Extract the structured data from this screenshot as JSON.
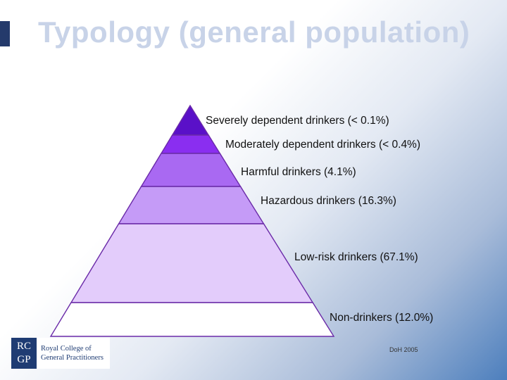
{
  "title": "Typology (general population)",
  "tiers": [
    {
      "label": "Severely dependent drinkers (< 0.1%)",
      "color": "#5a10c8"
    },
    {
      "label": "Moderately dependent drinkers (< 0.4%)",
      "color": "#8a2ef0"
    },
    {
      "label": "Harmful drinkers (4.1%)",
      "color": "#a969f2"
    },
    {
      "label": "Hazardous drinkers (16.3%)",
      "color": "#c59bf7"
    },
    {
      "label": "Low-risk drinkers (67.1%)",
      "color": "#e3ccfb"
    },
    {
      "label": "Non-drinkers (12.0%)",
      "color": "#ffffff"
    }
  ],
  "pyramid_outline_color": "#6a2aa8",
  "logo": {
    "mark_line1": "RC",
    "mark_line2": "GP",
    "text_line1": "Royal College of",
    "text_line2": "General Practitioners"
  },
  "source": "DoH 2005"
}
